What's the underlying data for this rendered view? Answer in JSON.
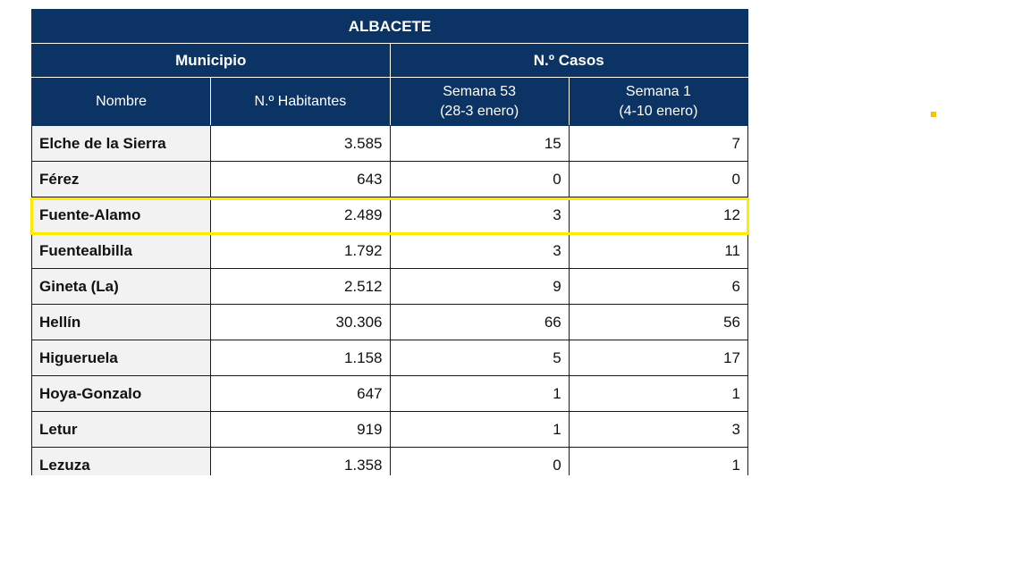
{
  "table": {
    "title": "ALBACETE",
    "groups": {
      "municipio": "Municipio",
      "casos": "N.º Casos"
    },
    "columns": {
      "nombre": "Nombre",
      "habitantes": "N.º Habitantes",
      "semana53_line1": "Semana 53",
      "semana53_line2": "(28-3 enero)",
      "semana1_line1": "Semana 1",
      "semana1_line2": "(4-10 enero)"
    },
    "rows": [
      {
        "nombre": "Elche de la Sierra",
        "habitantes": "3.585",
        "semana53": "15",
        "semana1": "7"
      },
      {
        "nombre": "Férez",
        "habitantes": "643",
        "semana53": "0",
        "semana1": "0"
      },
      {
        "nombre": "Fuente-Alamo",
        "habitantes": "2.489",
        "semana53": "3",
        "semana1": "12"
      },
      {
        "nombre": "Fuentealbilla",
        "habitantes": "1.792",
        "semana53": "3",
        "semana1": "11"
      },
      {
        "nombre": "Gineta (La)",
        "habitantes": "2.512",
        "semana53": "9",
        "semana1": "6"
      },
      {
        "nombre": "Hellín",
        "habitantes": "30.306",
        "semana53": "66",
        "semana1": "56"
      },
      {
        "nombre": "Higueruela",
        "habitantes": "1.158",
        "semana53": "5",
        "semana1": "17"
      },
      {
        "nombre": "Hoya-Gonzalo",
        "habitantes": "647",
        "semana53": "1",
        "semana1": "1"
      },
      {
        "nombre": "Letur",
        "habitantes": "919",
        "semana53": "1",
        "semana1": "3"
      },
      {
        "nombre": "Lezuza",
        "habitantes": "1.358",
        "semana53": "0",
        "semana1": "1"
      }
    ]
  },
  "highlight": {
    "row_name": "Fuente-Alamo",
    "color": "#ffea00"
  },
  "colors": {
    "header_bg": "#0b3363",
    "header_text": "#ffffff",
    "name_cell_bg": "#f2f2f2",
    "marker": "#f5c400"
  }
}
